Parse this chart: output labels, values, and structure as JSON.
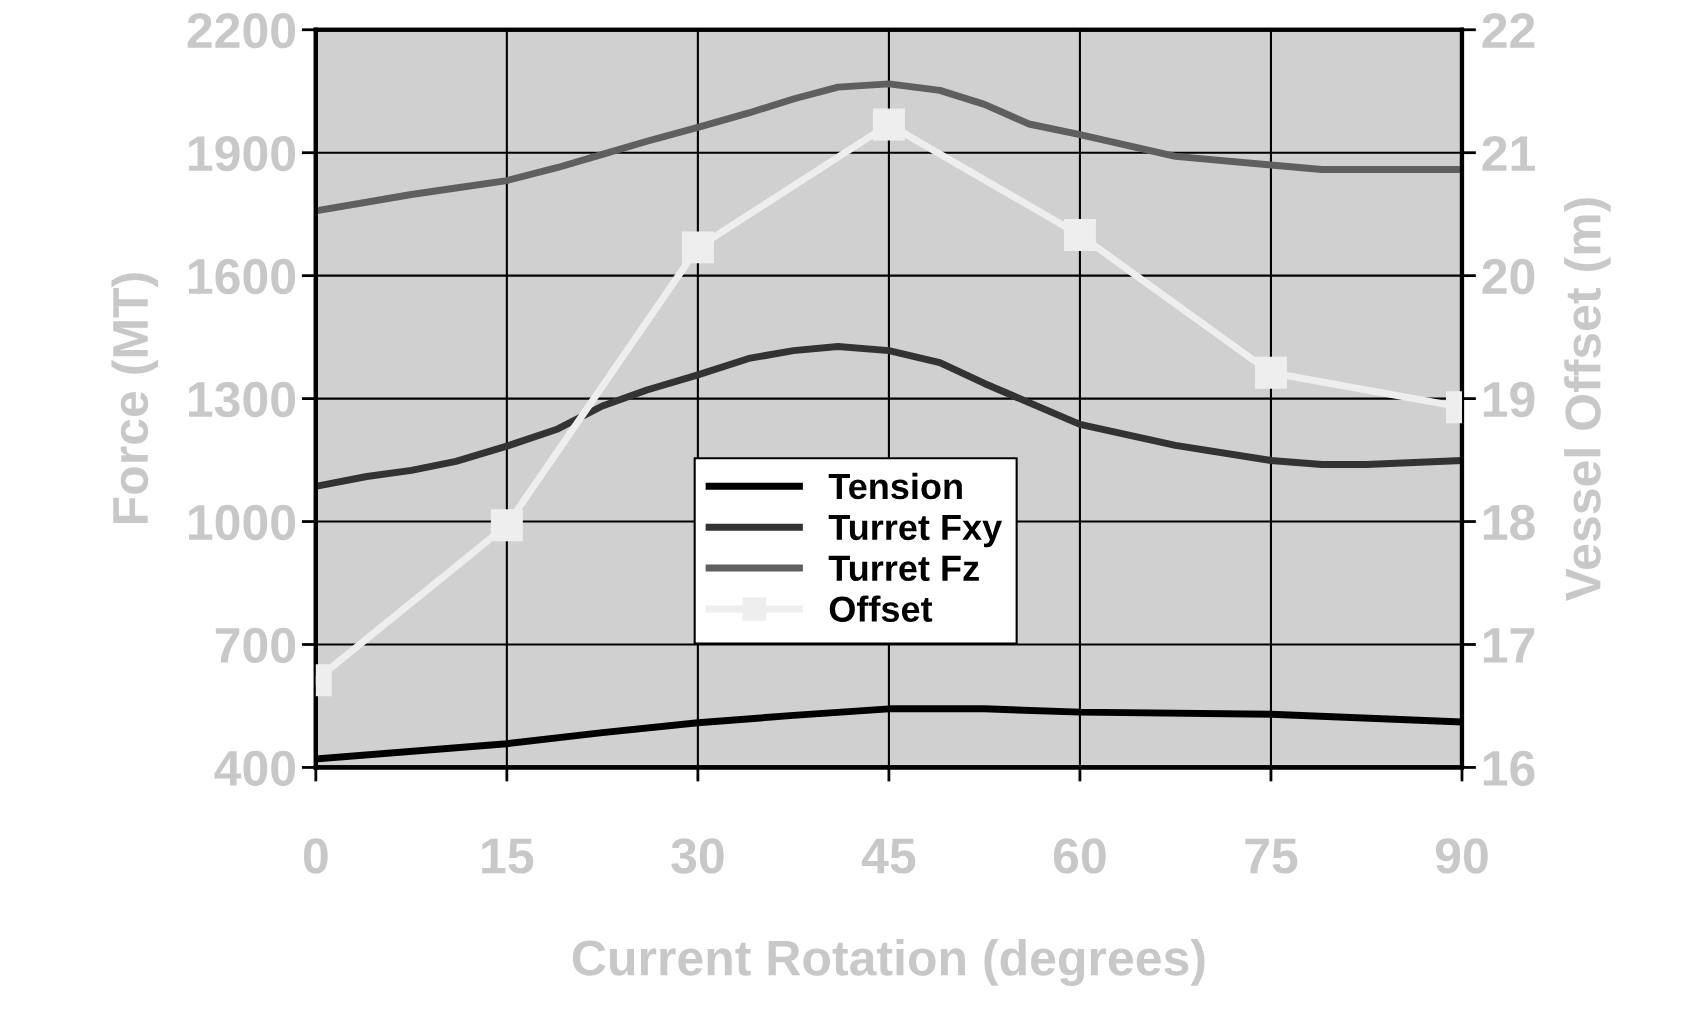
{
  "chart_data": {
    "type": "line",
    "xlabel": "Current Rotation (degrees)",
    "ylabel": "Force (MT)",
    "y2label": "Vessel Offset (m)",
    "xlim": [
      0,
      90
    ],
    "xticks": [
      0,
      15,
      30,
      45,
      60,
      75,
      90
    ],
    "ylim": [
      400,
      2200
    ],
    "yticks": [
      400,
      700,
      1000,
      1300,
      1600,
      1900,
      2200
    ],
    "y2lim": [
      16,
      22
    ],
    "y2ticks": [
      16,
      17,
      18,
      19,
      20,
      21,
      22
    ],
    "grid": true,
    "legend": "center",
    "line_style": "solid",
    "series": [
      {
        "name": "Tension",
        "color": "#000000",
        "marker": "none",
        "x": [
          0,
          15,
          22.5,
          30,
          37.5,
          45,
          52.5,
          60,
          75,
          90
        ],
        "values": [
          421,
          458,
          485,
          509,
          527,
          543,
          543,
          535,
          530,
          511
        ]
      },
      {
        "name": "Turret Fxy",
        "color": "#333333",
        "marker": "none",
        "x": [
          0,
          4,
          7.5,
          11,
          15,
          19,
          22.5,
          26,
          30,
          34,
          37.5,
          41,
          45,
          49,
          52.5,
          60,
          67.5,
          75,
          79,
          82.5,
          90
        ],
        "values": [
          1086,
          1110,
          1125,
          1147,
          1184,
          1226,
          1282,
          1321,
          1358,
          1398,
          1417,
          1427,
          1417,
          1388,
          1337,
          1237,
          1186,
          1149,
          1139,
          1139,
          1149
        ]
      },
      {
        "name": "Turret Fz",
        "color": "#5f5f5f",
        "marker": "none",
        "x": [
          0,
          7.5,
          11,
          15,
          19,
          22.5,
          26,
          30,
          34,
          37.5,
          41,
          45,
          49,
          52.5,
          56,
          60,
          67.5,
          75,
          79,
          90
        ],
        "values": [
          1758,
          1798,
          1814,
          1832,
          1864,
          1896,
          1928,
          1962,
          1997,
          2031,
          2060,
          2068,
          2052,
          2018,
          1970,
          1944,
          1891,
          1870,
          1859,
          1859
        ]
      },
      {
        "name": "Offset",
        "color": "#eeeeee",
        "marker": "square",
        "axis": "y2",
        "x": [
          0,
          15,
          30,
          45,
          60,
          75,
          90
        ],
        "values": [
          16.71,
          17.97,
          20.23,
          21.23,
          20.33,
          19.21,
          18.93
        ]
      }
    ]
  }
}
